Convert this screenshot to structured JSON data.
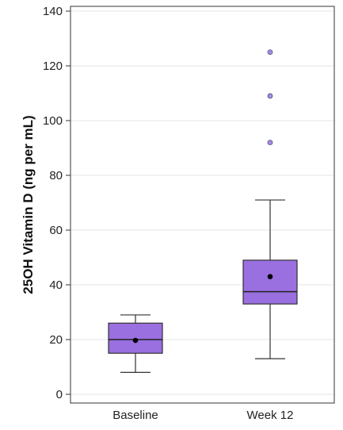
{
  "chart_data": {
    "type": "box",
    "title": "",
    "xlabel": "",
    "ylabel": "25OH Vitamin D (ng per mL)",
    "ylim": [
      0,
      140
    ],
    "yticks": [
      0,
      20,
      40,
      60,
      80,
      100,
      120,
      140
    ],
    "ytick_labels": [
      "0",
      "20",
      "40",
      "60",
      "80",
      "100",
      "120",
      "140"
    ],
    "grid": true,
    "colors": {
      "box_fill": "#9a6fe0",
      "box_stroke": "#333333",
      "mean_marker": "#000000",
      "outlier_fill": "#a58be6",
      "grid": "#e6e6e6"
    },
    "categories": [
      "Baseline",
      "Week 12"
    ],
    "boxes": [
      {
        "category": "Baseline",
        "whisker_low": 8,
        "q1": 15,
        "median": 20,
        "q3": 26,
        "whisker_high": 29,
        "mean": 19.7,
        "outliers": []
      },
      {
        "category": "Week 12",
        "whisker_low": 13,
        "q1": 33,
        "median": 37.5,
        "q3": 49,
        "whisker_high": 71,
        "mean": 43,
        "outliers": [
          92,
          109,
          125
        ]
      }
    ]
  }
}
